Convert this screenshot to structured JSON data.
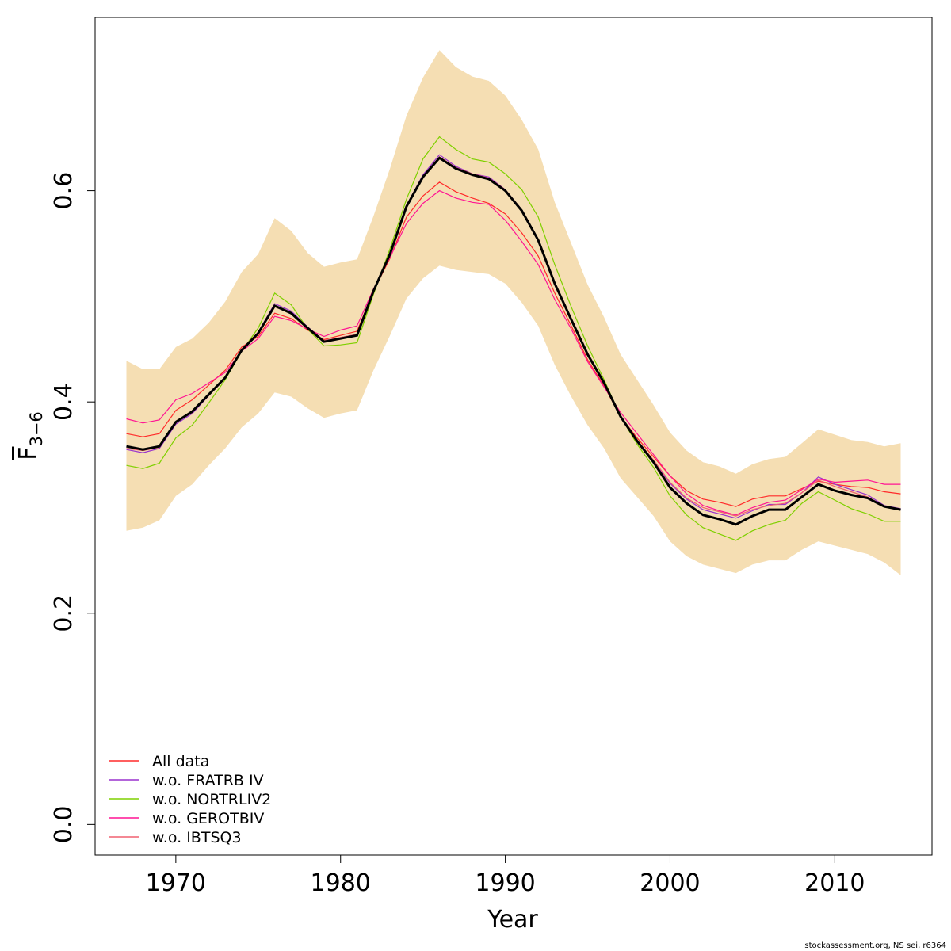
{
  "chart_data": {
    "type": "line",
    "xlabel": "Year",
    "ylabel": {
      "base": "F",
      "subscript": "3−6"
    },
    "footer": "stockassessment.org, NS sei, r6364",
    "xlim": [
      1965.1,
      2015.9
    ],
    "ylim": [
      -0.029,
      0.764
    ],
    "xticks": [
      1970,
      1980,
      1990,
      2000,
      2010
    ],
    "yticks": [
      {
        "value": 0,
        "label": "0.0"
      },
      0.2,
      0.4,
      0.6
    ],
    "legend_position": "bottomleft",
    "x": [
      1967,
      1968,
      1969,
      1970,
      1971,
      1972,
      1973,
      1974,
      1975,
      1976,
      1977,
      1978,
      1979,
      1980,
      1981,
      1982,
      1983,
      1984,
      1985,
      1986,
      1987,
      1988,
      1989,
      1990,
      1991,
      1992,
      1993,
      1994,
      1995,
      1996,
      1997,
      1998,
      1999,
      2000,
      2001,
      2002,
      2003,
      2004,
      2005,
      2006,
      2007,
      2008,
      2009,
      2010,
      2011,
      2012,
      2013,
      2014
    ],
    "band": {
      "color": "#f5deb3",
      "upper": [
        0.439,
        0.431,
        0.431,
        0.452,
        0.46,
        0.475,
        0.495,
        0.523,
        0.54,
        0.574,
        0.562,
        0.541,
        0.528,
        0.532,
        0.535,
        0.576,
        0.621,
        0.671,
        0.707,
        0.733,
        0.717,
        0.708,
        0.704,
        0.69,
        0.667,
        0.639,
        0.589,
        0.55,
        0.511,
        0.48,
        0.445,
        0.421,
        0.397,
        0.371,
        0.354,
        0.343,
        0.339,
        0.332,
        0.341,
        0.346,
        0.348,
        0.361,
        0.374,
        0.369,
        0.364,
        0.362,
        0.358,
        0.361
      ],
      "lower": [
        0.278,
        0.281,
        0.288,
        0.311,
        0.322,
        0.34,
        0.356,
        0.376,
        0.389,
        0.409,
        0.405,
        0.394,
        0.385,
        0.389,
        0.392,
        0.43,
        0.463,
        0.498,
        0.517,
        0.529,
        0.525,
        0.523,
        0.521,
        0.512,
        0.494,
        0.472,
        0.435,
        0.405,
        0.378,
        0.356,
        0.328,
        0.31,
        0.292,
        0.268,
        0.254,
        0.246,
        0.242,
        0.238,
        0.246,
        0.25,
        0.25,
        0.26,
        0.268,
        0.264,
        0.26,
        0.256,
        0.248,
        0.236
      ]
    },
    "estimate": {
      "color": "#000000",
      "values": [
        0.358,
        0.355,
        0.358,
        0.381,
        0.391,
        0.407,
        0.423,
        0.449,
        0.465,
        0.491,
        0.484,
        0.47,
        0.457,
        0.46,
        0.463,
        0.505,
        0.54,
        0.585,
        0.613,
        0.631,
        0.621,
        0.615,
        0.611,
        0.6,
        0.581,
        0.553,
        0.512,
        0.478,
        0.445,
        0.418,
        0.386,
        0.363,
        0.343,
        0.319,
        0.304,
        0.293,
        0.289,
        0.284,
        0.292,
        0.298,
        0.298,
        0.31,
        0.322,
        0.316,
        0.312,
        0.309,
        0.301,
        0.298
      ]
    },
    "series": [
      {
        "name": "All data",
        "color": "#ff2a2a",
        "values": [
          0.37,
          0.367,
          0.37,
          0.392,
          0.402,
          0.416,
          0.43,
          0.452,
          0.462,
          0.484,
          0.479,
          0.468,
          0.459,
          0.463,
          0.467,
          0.505,
          0.536,
          0.575,
          0.595,
          0.608,
          0.599,
          0.593,
          0.588,
          0.578,
          0.56,
          0.538,
          0.503,
          0.472,
          0.44,
          0.415,
          0.386,
          0.366,
          0.348,
          0.33,
          0.316,
          0.308,
          0.305,
          0.301,
          0.308,
          0.311,
          0.311,
          0.318,
          0.325,
          0.322,
          0.32,
          0.319,
          0.315,
          0.313
        ]
      },
      {
        "name": "w.o. FRATRB IV",
        "color": "#9a32cd",
        "values": [
          0.355,
          0.352,
          0.356,
          0.379,
          0.389,
          0.406,
          0.423,
          0.449,
          0.466,
          0.493,
          0.486,
          0.471,
          0.458,
          0.461,
          0.464,
          0.506,
          0.541,
          0.586,
          0.615,
          0.634,
          0.623,
          0.616,
          0.613,
          0.601,
          0.582,
          0.554,
          0.512,
          0.478,
          0.445,
          0.418,
          0.386,
          0.363,
          0.344,
          0.323,
          0.308,
          0.298,
          0.294,
          0.29,
          0.297,
          0.303,
          0.303,
          0.314,
          0.329,
          0.322,
          0.317,
          0.312,
          0.302,
          0.299
        ]
      },
      {
        "name": "w.o. NORTRLIV2",
        "color": "#7fd000",
        "values": [
          0.34,
          0.337,
          0.342,
          0.366,
          0.378,
          0.399,
          0.421,
          0.448,
          0.47,
          0.503,
          0.492,
          0.469,
          0.453,
          0.454,
          0.456,
          0.502,
          0.545,
          0.592,
          0.63,
          0.651,
          0.639,
          0.63,
          0.627,
          0.616,
          0.601,
          0.575,
          0.53,
          0.49,
          0.453,
          0.421,
          0.386,
          0.36,
          0.338,
          0.311,
          0.293,
          0.281,
          0.275,
          0.269,
          0.278,
          0.284,
          0.288,
          0.304,
          0.315,
          0.307,
          0.299,
          0.294,
          0.287,
          0.287
        ]
      },
      {
        "name": "w.o. GEROTBIV",
        "color": "#ff1493",
        "values": [
          0.384,
          0.38,
          0.383,
          0.402,
          0.408,
          0.418,
          0.428,
          0.448,
          0.46,
          0.481,
          0.477,
          0.469,
          0.462,
          0.468,
          0.472,
          0.507,
          0.537,
          0.569,
          0.588,
          0.6,
          0.593,
          0.589,
          0.587,
          0.572,
          0.552,
          0.53,
          0.497,
          0.469,
          0.438,
          0.414,
          0.39,
          0.37,
          0.35,
          0.33,
          0.313,
          0.302,
          0.297,
          0.293,
          0.3,
          0.305,
          0.307,
          0.317,
          0.327,
          0.324,
          0.325,
          0.326,
          0.322,
          0.322
        ]
      },
      {
        "name": "w.o. IBTSQ3",
        "color": "#f06070",
        "values": [
          0.356,
          0.354,
          0.357,
          0.381,
          0.39,
          0.407,
          0.423,
          0.45,
          0.466,
          0.49,
          0.484,
          0.47,
          0.458,
          0.461,
          0.464,
          0.505,
          0.541,
          0.585,
          0.613,
          0.632,
          0.622,
          0.616,
          0.612,
          0.601,
          0.582,
          0.554,
          0.512,
          0.478,
          0.445,
          0.418,
          0.387,
          0.364,
          0.345,
          0.324,
          0.309,
          0.3,
          0.296,
          0.292,
          0.298,
          0.302,
          0.304,
          0.314,
          0.326,
          0.32,
          0.315,
          0.31,
          0.301,
          0.298
        ]
      }
    ]
  }
}
